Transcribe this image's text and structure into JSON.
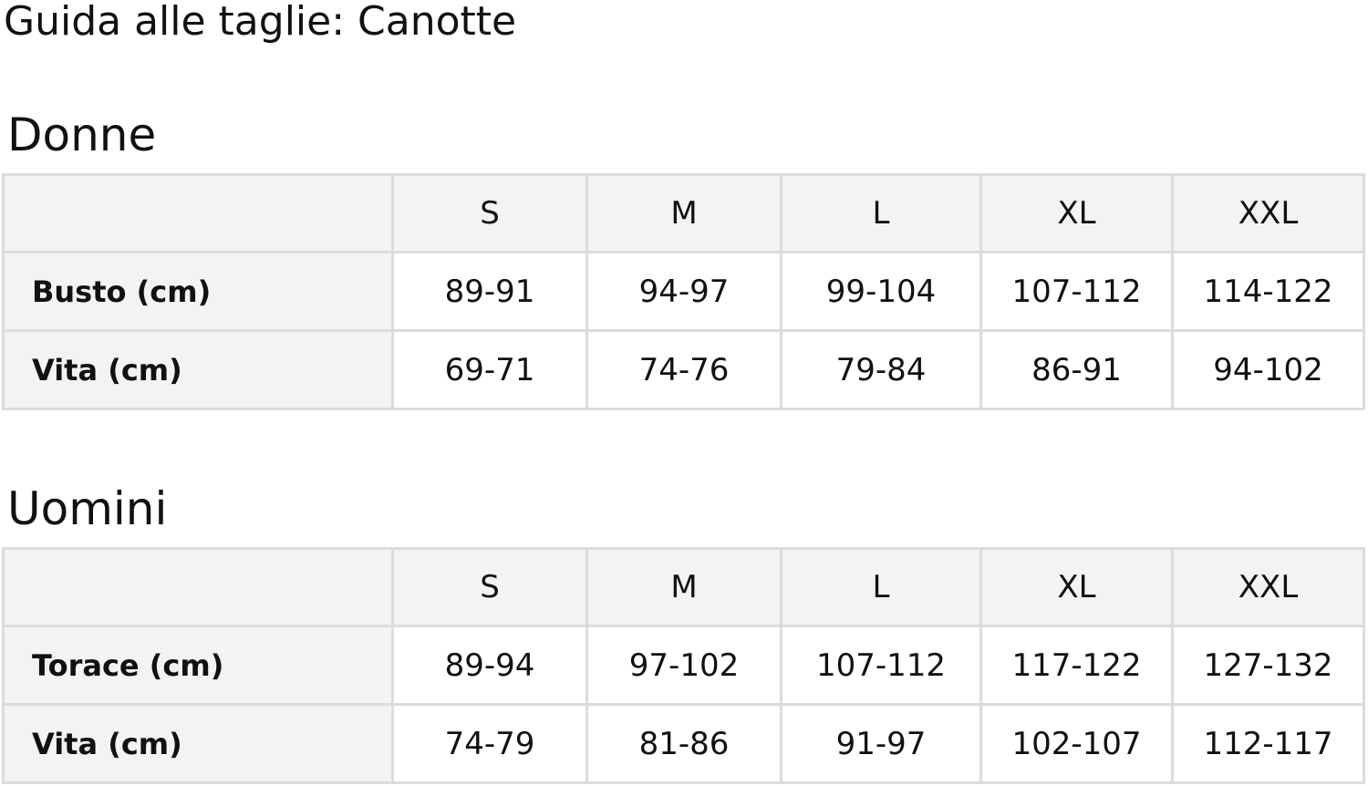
{
  "title": "Guida alle taglie: Canotte",
  "sections": [
    {
      "name": "Donne",
      "sizes": [
        "S",
        "M",
        "L",
        "XL",
        "XXL"
      ],
      "rows": [
        {
          "label": "Busto (cm)",
          "values": [
            "89-91",
            "94-97",
            "99-104",
            "107-112",
            "114-122"
          ]
        },
        {
          "label": "Vita (cm)",
          "values": [
            "69-71",
            "74-76",
            "79-84",
            "86-91",
            "94-102"
          ]
        }
      ]
    },
    {
      "name": "Uomini",
      "sizes": [
        "S",
        "M",
        "L",
        "XL",
        "XXL"
      ],
      "rows": [
        {
          "label": "Torace (cm)",
          "values": [
            "89-94",
            "97-102",
            "107-112",
            "117-122",
            "127-132"
          ]
        },
        {
          "label": "Vita (cm)",
          "values": [
            "74-79",
            "81-86",
            "91-97",
            "102-107",
            "112-117"
          ]
        }
      ]
    }
  ]
}
